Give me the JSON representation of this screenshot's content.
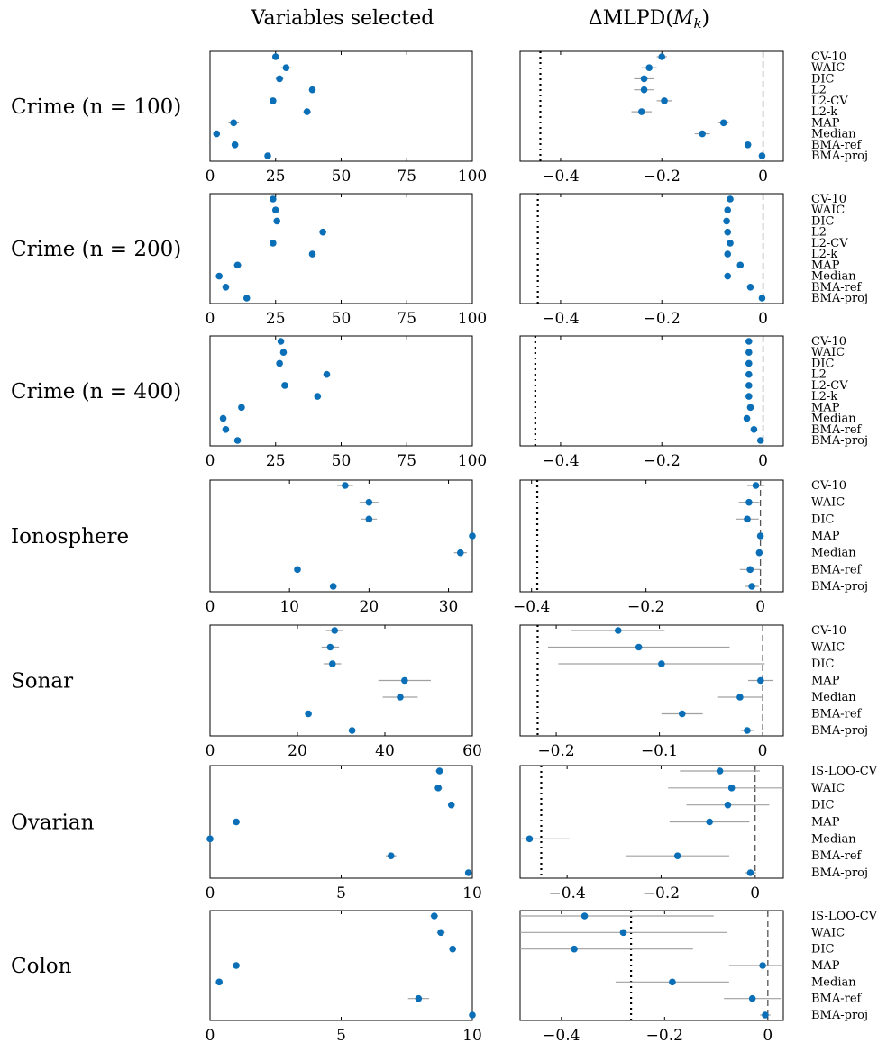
{
  "headers": {
    "left": "Variables selected",
    "right_prefix": "ΔMLPD(",
    "right_var": "M",
    "right_sub": "k",
    "right_suffix": ")"
  },
  "colors": {
    "point": "#0a6fb7",
    "errorbar": "#a0a0a0"
  },
  "chart_data": [
    {
      "type": "scatter",
      "row_label": "Crime (n = 100)",
      "methods": [
        "CV-10",
        "WAIC",
        "DIC",
        "L2",
        "L2-CV",
        "L2-k",
        "MAP",
        "Median",
        "BMA-ref",
        "BMA-proj"
      ],
      "left": {
        "xlim": [
          0,
          100
        ],
        "xticks": [
          0,
          25,
          50,
          75,
          100
        ],
        "x": [
          25,
          29,
          26.5,
          39,
          24,
          37,
          9,
          2.5,
          9.5,
          22
        ],
        "err": [
          1,
          2,
          1.5,
          1,
          0.5,
          1.5,
          2,
          0.5,
          1,
          0.5
        ]
      },
      "right": {
        "xlim": [
          -0.48,
          0.04
        ],
        "xticks": [
          -0.4,
          -0.2,
          0
        ],
        "xticklabels": [
          "−0.4",
          "−0.2",
          "0"
        ],
        "ref": -0.44,
        "x": [
          -0.2,
          -0.225,
          -0.235,
          -0.235,
          -0.195,
          -0.24,
          -0.078,
          -0.12,
          -0.03,
          -0.002
        ],
        "err": [
          0.01,
          0.015,
          0.02,
          0.02,
          0.015,
          0.02,
          0.01,
          0.015,
          0.005,
          0.003
        ]
      }
    },
    {
      "type": "scatter",
      "row_label": "Crime (n = 200)",
      "methods": [
        "CV-10",
        "WAIC",
        "DIC",
        "L2",
        "L2-CV",
        "L2-k",
        "MAP",
        "Median",
        "BMA-ref",
        "BMA-proj"
      ],
      "left": {
        "xlim": [
          0,
          100
        ],
        "xticks": [
          0,
          25,
          50,
          75,
          100
        ],
        "x": [
          24,
          25,
          25.5,
          43,
          24,
          39,
          10.5,
          3.5,
          6,
          14
        ],
        "err": [
          0.5,
          0.5,
          1,
          0.5,
          0.5,
          1,
          1.5,
          0.5,
          0.5,
          0.5
        ]
      },
      "right": {
        "xlim": [
          -0.48,
          0.04
        ],
        "xticks": [
          -0.4,
          -0.2,
          0
        ],
        "xticklabels": [
          "−0.4",
          "−0.2",
          "0"
        ],
        "ref": -0.445,
        "x": [
          -0.065,
          -0.07,
          -0.072,
          -0.07,
          -0.065,
          -0.07,
          -0.045,
          -0.07,
          -0.025,
          -0.002
        ],
        "err": [
          0.005,
          0.005,
          0.005,
          0.005,
          0.005,
          0.005,
          0.005,
          0.005,
          0.005,
          0.003
        ]
      }
    },
    {
      "type": "scatter",
      "row_label": "Crime (n = 400)",
      "methods": [
        "CV-10",
        "WAIC",
        "DIC",
        "L2",
        "L2-CV",
        "L2-k",
        "MAP",
        "Median",
        "BMA-ref",
        "BMA-proj"
      ],
      "left": {
        "xlim": [
          0,
          100
        ],
        "xticks": [
          0,
          25,
          50,
          75,
          100
        ],
        "x": [
          27,
          28,
          26.5,
          44.5,
          28.5,
          41,
          12,
          5,
          6,
          10.5
        ],
        "err": [
          0.5,
          0.5,
          0.5,
          0.5,
          0.5,
          1,
          1,
          0.5,
          0.5,
          0.5
        ]
      },
      "right": {
        "xlim": [
          -0.48,
          0.04
        ],
        "xticks": [
          -0.4,
          -0.2,
          0
        ],
        "xticklabels": [
          "−0.4",
          "−0.2",
          "0"
        ],
        "ref": -0.45,
        "x": [
          -0.028,
          -0.028,
          -0.028,
          -0.028,
          -0.028,
          -0.028,
          -0.025,
          -0.032,
          -0.018,
          -0.005
        ],
        "err": [
          0.003,
          0.003,
          0.003,
          0.003,
          0.003,
          0.003,
          0.003,
          0.003,
          0.003,
          0.002
        ]
      }
    },
    {
      "type": "scatter",
      "row_label": "Ionosphere",
      "methods": [
        "CV-10",
        "WAIC",
        "DIC",
        "MAP",
        "Median",
        "BMA-ref",
        "BMA-proj"
      ],
      "left": {
        "xlim": [
          0,
          33
        ],
        "xticks": [
          0,
          10,
          20,
          30
        ],
        "x": [
          17,
          20,
          20,
          33,
          31.5,
          11,
          15.5
        ],
        "err": [
          1,
          1.2,
          1,
          0.3,
          0.8,
          0.2,
          0.3
        ]
      },
      "right": {
        "xlim": [
          -0.42,
          0.04
        ],
        "xticks": [
          -0.4,
          -0.2,
          0
        ],
        "xticklabels": [
          "−0.4",
          "−0.2",
          "0"
        ],
        "ref": -0.39,
        "x": [
          -0.008,
          -0.02,
          -0.023,
          0,
          -0.002,
          -0.018,
          -0.015
        ],
        "err": [
          0.015,
          0.018,
          0.02,
          0.003,
          0.003,
          0.018,
          0.012
        ]
      }
    },
    {
      "type": "scatter",
      "row_label": "Sonar",
      "methods": [
        "CV-10",
        "WAIC",
        "DIC",
        "MAP",
        "Median",
        "BMA-ref",
        "BMA-proj"
      ],
      "left": {
        "xlim": [
          0,
          60
        ],
        "xticks": [
          0,
          20,
          40,
          60
        ],
        "x": [
          28.5,
          27.5,
          28,
          44.5,
          43.5,
          22.5,
          32.5
        ],
        "err": [
          2,
          2,
          2,
          6,
          4,
          0.5,
          0.5
        ]
      },
      "right": {
        "xlim": [
          -0.235,
          0.02
        ],
        "xticks": [
          -0.2,
          -0.1,
          0
        ],
        "xticklabels": [
          "−0.2",
          "−0.1",
          "0"
        ],
        "ref": -0.218,
        "x": [
          -0.14,
          -0.12,
          -0.098,
          -0.002,
          -0.022,
          -0.078,
          -0.015
        ],
        "err": [
          0.045,
          0.088,
          0.1,
          0.012,
          0.022,
          0.02,
          0.006
        ]
      }
    },
    {
      "type": "scatter",
      "row_label": "Ovarian",
      "methods": [
        "IS-LOO-CV",
        "WAIC",
        "DIC",
        "MAP",
        "Median",
        "BMA-ref",
        "BMA-proj"
      ],
      "left": {
        "xlim": [
          0,
          10
        ],
        "xticks": [
          0,
          5,
          10
        ],
        "x": [
          8.75,
          8.7,
          9.2,
          1,
          0,
          6.9,
          9.85
        ],
        "err": [
          0.15,
          0.15,
          0.1,
          0,
          0,
          0.2,
          0.05
        ]
      },
      "right": {
        "xlim": [
          -0.5,
          0.06
        ],
        "xticks": [
          -0.4,
          -0.2,
          0
        ],
        "xticklabels": [
          "−0.4",
          "−0.2",
          "0"
        ],
        "ref": -0.455,
        "x": [
          -0.075,
          -0.05,
          -0.058,
          -0.097,
          -0.48,
          -0.165,
          -0.01
        ],
        "err": [
          0.085,
          0.135,
          0.088,
          0.085,
          0.085,
          0.11,
          0.012
        ]
      }
    },
    {
      "type": "scatter",
      "row_label": "Colon",
      "methods": [
        "IS-LOO-CV",
        "WAIC",
        "DIC",
        "MAP",
        "Median",
        "BMA-ref",
        "BMA-proj"
      ],
      "left": {
        "xlim": [
          0,
          10
        ],
        "xticks": [
          0,
          5,
          10
        ],
        "x": [
          8.55,
          8.8,
          9.25,
          1,
          0.35,
          7.95,
          10
        ],
        "err": [
          0.15,
          0.15,
          0.1,
          0,
          0,
          0.4,
          0
        ]
      },
      "right": {
        "xlim": [
          -0.48,
          0.03
        ],
        "xticks": [
          -0.4,
          -0.2,
          0
        ],
        "xticklabels": [
          "−0.4",
          "−0.2",
          "0"
        ],
        "ref": -0.265,
        "x": [
          -0.355,
          -0.28,
          -0.375,
          -0.01,
          -0.185,
          -0.03,
          -0.005
        ],
        "err": [
          0.25,
          0.2,
          0.23,
          0.065,
          0.11,
          0.055,
          0.01
        ]
      }
    }
  ]
}
